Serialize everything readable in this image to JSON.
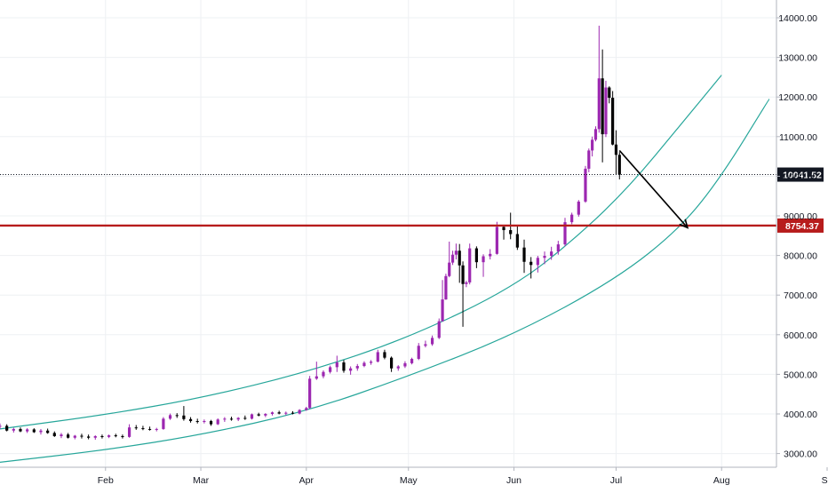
{
  "colors": {
    "background": "#ffffff",
    "grid": "#eef0f3",
    "axis_line": "#b2b5be",
    "tick_text": "#131722",
    "bull_candle": "#9c27b0",
    "bear_candle": "#000000",
    "channel": "#26a69a",
    "support_line": "#b71c1c",
    "support_label_bg": "#b71c1c",
    "price_line": "#131722",
    "price_label_bg": "#131722",
    "label_text": "#ffffff",
    "arrow": "#000000"
  },
  "chart_data": {
    "type": "candlestick",
    "x_tick_labels": [
      "Feb",
      "Mar",
      "Apr",
      "May",
      "Jun",
      "Jul",
      "Aug",
      "Se"
    ],
    "y_tick_labels": [
      "14000.00",
      "13000.00",
      "12000.00",
      "11000.00",
      "10000.00",
      "9000.00",
      "8000.00",
      "7000.00",
      "6000.00",
      "5000.00",
      "4000.00",
      "3000.00"
    ],
    "y_ticks": [
      14000,
      13000,
      12000,
      11000,
      10000,
      9000,
      8000,
      7000,
      6000,
      5000,
      4000,
      3000
    ],
    "y_range": [
      2700,
      14300
    ],
    "x_range": [
      "2019-01-01",
      "2019-09-01"
    ],
    "grid": true,
    "last_price": {
      "label": "10041.52",
      "value": 10041.52
    },
    "support": {
      "label": "8754.37",
      "value": 8754.37
    },
    "upper_channel": {
      "x": [
        "2019-01-01",
        "2019-02-01",
        "2019-03-01",
        "2019-04-01",
        "2019-05-01",
        "2019-06-01",
        "2019-06-20",
        "2019-07-05",
        "2019-07-20",
        "2019-08-01"
      ],
      "y": [
        3620,
        3980,
        4400,
        5050,
        5920,
        7200,
        8500,
        9750,
        11300,
        12550
      ]
    },
    "lower_channel": {
      "x": [
        "2019-01-01",
        "2019-02-01",
        "2019-03-01",
        "2019-04-01",
        "2019-05-01",
        "2019-06-01",
        "2019-07-01",
        "2019-07-20",
        "2019-08-01",
        "2019-08-15"
      ],
      "y": [
        2780,
        3090,
        3470,
        4060,
        4950,
        6000,
        7400,
        8700,
        10000,
        11950
      ]
    },
    "arrow": {
      "from": {
        "x": "2019-07-02",
        "y": 10650
      },
      "to": {
        "x": "2019-07-22",
        "y": 8700
      }
    },
    "candles": [
      [
        "2019-01-01",
        3690,
        3760,
        3620,
        3700
      ],
      [
        "2019-01-03",
        3700,
        3740,
        3560,
        3580
      ],
      [
        "2019-01-05",
        3580,
        3650,
        3530,
        3620
      ],
      [
        "2019-01-07",
        3620,
        3660,
        3540,
        3560
      ],
      [
        "2019-01-09",
        3560,
        3640,
        3520,
        3610
      ],
      [
        "2019-01-11",
        3610,
        3640,
        3520,
        3540
      ],
      [
        "2019-01-13",
        3540,
        3620,
        3480,
        3580
      ],
      [
        "2019-01-15",
        3580,
        3630,
        3500,
        3520
      ],
      [
        "2019-01-17",
        3520,
        3560,
        3420,
        3440
      ],
      [
        "2019-01-19",
        3440,
        3520,
        3390,
        3480
      ],
      [
        "2019-01-21",
        3480,
        3520,
        3380,
        3400
      ],
      [
        "2019-01-23",
        3400,
        3470,
        3360,
        3450
      ],
      [
        "2019-01-25",
        3450,
        3500,
        3380,
        3430
      ],
      [
        "2019-01-27",
        3430,
        3480,
        3360,
        3400
      ],
      [
        "2019-01-29",
        3400,
        3460,
        3350,
        3440
      ],
      [
        "2019-01-31",
        3440,
        3480,
        3380,
        3420
      ],
      [
        "2019-02-02",
        3420,
        3480,
        3390,
        3460
      ],
      [
        "2019-02-04",
        3460,
        3500,
        3410,
        3440
      ],
      [
        "2019-02-06",
        3440,
        3480,
        3380,
        3420
      ],
      [
        "2019-02-08",
        3420,
        3740,
        3400,
        3660
      ],
      [
        "2019-02-10",
        3660,
        3720,
        3600,
        3640
      ],
      [
        "2019-02-12",
        3640,
        3700,
        3590,
        3620
      ],
      [
        "2019-02-14",
        3620,
        3680,
        3580,
        3600
      ],
      [
        "2019-02-16",
        3600,
        3650,
        3560,
        3620
      ],
      [
        "2019-02-18",
        3620,
        3920,
        3600,
        3880
      ],
      [
        "2019-02-20",
        3880,
        4010,
        3850,
        3970
      ],
      [
        "2019-02-22",
        3970,
        4020,
        3900,
        3960
      ],
      [
        "2019-02-24",
        3960,
        4200,
        3830,
        3870
      ],
      [
        "2019-02-26",
        3870,
        3920,
        3780,
        3820
      ],
      [
        "2019-02-28",
        3820,
        3880,
        3760,
        3800
      ],
      [
        "2019-03-02",
        3800,
        3860,
        3760,
        3820
      ],
      [
        "2019-03-04",
        3820,
        3850,
        3700,
        3740
      ],
      [
        "2019-03-06",
        3740,
        3890,
        3720,
        3860
      ],
      [
        "2019-03-08",
        3860,
        3920,
        3800,
        3880
      ],
      [
        "2019-03-10",
        3880,
        3930,
        3830,
        3860
      ],
      [
        "2019-03-12",
        3860,
        3920,
        3820,
        3900
      ],
      [
        "2019-03-14",
        3900,
        3960,
        3850,
        3880
      ],
      [
        "2019-03-16",
        3880,
        4010,
        3860,
        3990
      ],
      [
        "2019-03-18",
        3990,
        4030,
        3940,
        3960
      ],
      [
        "2019-03-20",
        3960,
        4020,
        3920,
        4000
      ],
      [
        "2019-03-22",
        4000,
        4060,
        3960,
        4040
      ],
      [
        "2019-03-24",
        4040,
        4080,
        3990,
        4010
      ],
      [
        "2019-03-26",
        4010,
        4060,
        3970,
        4030
      ],
      [
        "2019-03-28",
        4030,
        4070,
        3990,
        4010
      ],
      [
        "2019-03-30",
        4010,
        4120,
        3990,
        4100
      ],
      [
        "2019-04-01",
        4100,
        4180,
        4080,
        4150
      ],
      [
        "2019-04-02",
        4150,
        4960,
        4130,
        4890
      ],
      [
        "2019-04-04",
        4890,
        5320,
        4860,
        4950
      ],
      [
        "2019-04-06",
        4950,
        5100,
        4900,
        5060
      ],
      [
        "2019-04-08",
        5060,
        5220,
        5020,
        5180
      ],
      [
        "2019-04-10",
        5180,
        5470,
        5060,
        5300
      ],
      [
        "2019-04-12",
        5300,
        5360,
        5040,
        5090
      ],
      [
        "2019-04-14",
        5090,
        5200,
        4990,
        5150
      ],
      [
        "2019-04-16",
        5150,
        5260,
        5090,
        5210
      ],
      [
        "2019-04-18",
        5210,
        5330,
        5180,
        5290
      ],
      [
        "2019-04-20",
        5290,
        5360,
        5240,
        5320
      ],
      [
        "2019-04-22",
        5320,
        5620,
        5300,
        5560
      ],
      [
        "2019-04-24",
        5560,
        5620,
        5380,
        5420
      ],
      [
        "2019-04-26",
        5420,
        5450,
        5060,
        5150
      ],
      [
        "2019-04-28",
        5150,
        5230,
        5090,
        5200
      ],
      [
        "2019-04-30",
        5200,
        5330,
        5160,
        5280
      ],
      [
        "2019-05-02",
        5280,
        5420,
        5250,
        5390
      ],
      [
        "2019-05-04",
        5390,
        5790,
        5360,
        5720
      ],
      [
        "2019-05-06",
        5720,
        5850,
        5680,
        5760
      ],
      [
        "2019-05-08",
        5760,
        5980,
        5720,
        5920
      ],
      [
        "2019-05-10",
        5920,
        6410,
        5890,
        6340
      ],
      [
        "2019-05-11",
        6340,
        7380,
        6330,
        6890
      ],
      [
        "2019-05-12",
        6890,
        7540,
        6880,
        7480
      ],
      [
        "2019-05-13",
        7480,
        8350,
        7450,
        7820
      ],
      [
        "2019-05-14",
        7820,
        8120,
        7760,
        8020
      ],
      [
        "2019-05-15",
        8020,
        8300,
        7900,
        8120
      ],
      [
        "2019-05-16",
        8120,
        8290,
        7310,
        7750
      ],
      [
        "2019-05-17",
        7750,
        7850,
        6200,
        7280
      ],
      [
        "2019-05-18",
        7280,
        7360,
        7200,
        7320
      ],
      [
        "2019-05-19",
        7320,
        8300,
        7270,
        8180
      ],
      [
        "2019-05-21",
        8180,
        8230,
        7680,
        7830
      ],
      [
        "2019-05-23",
        7830,
        8030,
        7460,
        7980
      ],
      [
        "2019-05-25",
        7980,
        8160,
        7900,
        8040
      ],
      [
        "2019-05-27",
        8040,
        8850,
        8020,
        8720
      ],
      [
        "2019-05-29",
        8720,
        8750,
        8400,
        8640
      ],
      [
        "2019-05-31",
        8640,
        9080,
        8410,
        8540
      ],
      [
        "2019-06-02",
        8540,
        8740,
        8140,
        8200
      ],
      [
        "2019-06-04",
        8200,
        8400,
        7560,
        7840
      ],
      [
        "2019-06-06",
        7840,
        7960,
        7420,
        7760
      ],
      [
        "2019-06-08",
        7760,
        7990,
        7570,
        7940
      ],
      [
        "2019-06-10",
        7940,
        8100,
        7780,
        7990
      ],
      [
        "2019-06-12",
        7990,
        8220,
        7890,
        8100
      ],
      [
        "2019-06-14",
        8100,
        8370,
        8020,
        8280
      ],
      [
        "2019-06-16",
        8280,
        8950,
        8230,
        8840
      ],
      [
        "2019-06-18",
        8840,
        9080,
        8790,
        9030
      ],
      [
        "2019-06-20",
        9030,
        9400,
        8980,
        9360
      ],
      [
        "2019-06-22",
        9360,
        10260,
        9330,
        10190
      ],
      [
        "2019-06-23",
        10190,
        10700,
        10100,
        10650
      ],
      [
        "2019-06-24",
        10650,
        11000,
        10500,
        10920
      ],
      [
        "2019-06-25",
        10920,
        11260,
        10880,
        11190
      ],
      [
        "2019-06-26",
        11190,
        13800,
        11100,
        12470
      ],
      [
        "2019-06-27",
        12470,
        13200,
        10350,
        11060
      ],
      [
        "2019-06-28",
        11060,
        12410,
        10990,
        12240
      ],
      [
        "2019-06-29",
        12240,
        12270,
        11840,
        11980
      ],
      [
        "2019-06-30",
        11980,
        12150,
        10780,
        10800
      ],
      [
        "2019-07-01",
        10800,
        11160,
        10050,
        10540
      ],
      [
        "2019-07-02",
        10540,
        10610,
        9920,
        10041.52
      ]
    ]
  }
}
